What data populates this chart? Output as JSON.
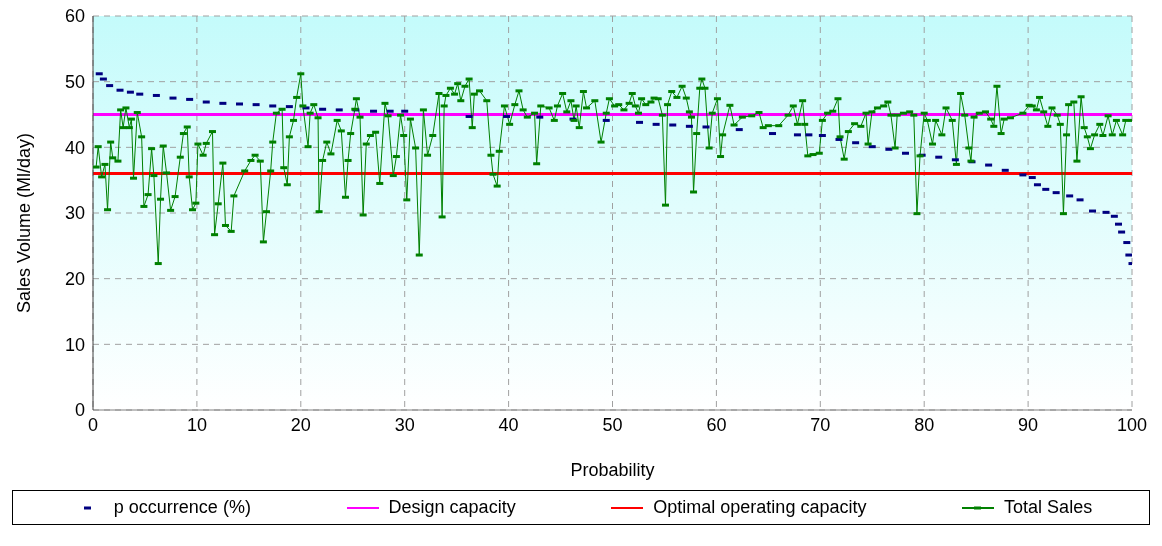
{
  "chart_data": {
    "type": "line",
    "xlabel": "Probability",
    "ylabel": "Sales Volume (Ml/day)",
    "xlim": [
      0,
      100
    ],
    "ylim": [
      0,
      60
    ],
    "xticks": [
      0,
      10,
      20,
      30,
      40,
      50,
      60,
      70,
      80,
      90,
      100
    ],
    "yticks": [
      0,
      10,
      20,
      30,
      40,
      50,
      60
    ],
    "grid": true,
    "legend": "bottom",
    "series": [
      {
        "name": "p occurrence (%)",
        "type": "scatter",
        "marker": "square",
        "color": "#000080",
        "x": [
          0.6,
          1.0,
          1.6,
          2.6,
          3.6,
          4.5,
          6.1,
          7.7,
          9.3,
          10.9,
          12.5,
          14.1,
          15.7,
          17.3,
          18.9,
          20.5,
          22.1,
          23.7,
          25.3,
          27.0,
          28.6,
          30.0,
          36.2,
          39.8,
          43.0,
          46.2,
          49.4,
          52.6,
          54.2,
          55.8,
          57.4,
          59.0,
          62.2,
          65.4,
          67.8,
          68.9,
          70.2,
          71.8,
          73.4,
          75.0,
          76.6,
          78.2,
          79.8,
          81.4,
          83.0,
          84.6,
          86.2,
          87.8,
          89.5,
          90.4,
          90.9,
          91.7,
          92.7,
          94.0,
          95.0,
          96.2,
          97.5,
          98.3,
          98.7,
          99.0,
          99.5,
          99.7,
          100.0
        ],
        "values": [
          51.2,
          50.4,
          49.4,
          48.7,
          48.4,
          48.1,
          47.9,
          47.5,
          47.3,
          46.9,
          46.7,
          46.6,
          46.5,
          46.3,
          46.2,
          46.0,
          45.8,
          45.7,
          45.7,
          45.5,
          45.5,
          45.5,
          44.7,
          44.7,
          44.6,
          44.3,
          44.1,
          43.8,
          43.5,
          43.4,
          43.2,
          43.1,
          42.7,
          42.1,
          41.9,
          41.9,
          41.8,
          41.2,
          40.7,
          40.1,
          39.7,
          39.1,
          38.8,
          38.5,
          38.1,
          37.8,
          37.3,
          36.5,
          35.8,
          35.4,
          34.3,
          33.6,
          33.1,
          32.6,
          32.0,
          30.3,
          30.1,
          29.5,
          28.3,
          27.1,
          25.5,
          23.6,
          22.3
        ]
      },
      {
        "name": "Design capacity",
        "type": "line",
        "color": "#ff00ff",
        "x": [
          0,
          100
        ],
        "values": [
          45,
          45
        ]
      },
      {
        "name": "Optimal operating capacity",
        "type": "line",
        "color": "#ff0000",
        "x": [
          0,
          100
        ],
        "values": [
          36,
          36
        ]
      },
      {
        "name": "Total Sales",
        "type": "line",
        "marker": "square",
        "color": "#008000",
        "x": [
          0.3,
          0.5,
          0.83,
          1.15,
          1.4,
          1.7,
          1.9,
          2.4,
          2.66,
          2.9,
          3.17,
          3.5,
          3.7,
          3.9,
          4.26,
          4.68,
          4.9,
          5.3,
          5.64,
          5.86,
          6.28,
          6.5,
          6.76,
          7.08,
          7.47,
          7.9,
          8.4,
          8.7,
          9.07,
          9.26,
          9.58,
          9.9,
          10.1,
          10.6,
          10.9,
          11.5,
          11.7,
          12.05,
          12.5,
          12.75,
          13.3,
          13.56,
          14.6,
          15.2,
          15.6,
          16.1,
          16.4,
          16.7,
          17.1,
          17.3,
          17.65,
          18.2,
          18.36,
          18.7,
          18.9,
          19.3,
          19.6,
          20.0,
          20.2,
          20.7,
          20.9,
          21.25,
          21.66,
          21.76,
          22.1,
          22.5,
          22.9,
          23.5,
          23.9,
          24.3,
          24.55,
          24.8,
          25.2,
          25.35,
          25.7,
          26.0,
          26.3,
          26.7,
          27.2,
          27.6,
          28.1,
          28.4,
          28.9,
          29.2,
          29.6,
          29.9,
          30.2,
          30.55,
          31.05,
          31.4,
          31.8,
          32.2,
          32.7,
          33.3,
          33.6,
          33.8,
          33.97,
          34.4,
          34.8,
          35.1,
          35.4,
          35.8,
          36.2,
          36.5,
          36.7,
          37.2,
          37.9,
          38.3,
          38.5,
          38.9,
          39.1,
          39.6,
          40.1,
          40.6,
          41.0,
          41.4,
          41.8,
          42.5,
          42.7,
          43.1,
          43.9,
          44.4,
          44.7,
          45.2,
          45.6,
          46.0,
          46.3,
          46.5,
          46.8,
          47.2,
          47.5,
          48.3,
          48.9,
          49.4,
          49.7,
          50.2,
          50.6,
          51.1,
          51.6,
          51.9,
          52.2,
          52.5,
          52.8,
          53.2,
          53.7,
          54.0,
          54.4,
          54.8,
          55.1,
          55.3,
          55.7,
          56.2,
          56.7,
          57.1,
          57.4,
          57.6,
          57.8,
          58.1,
          58.4,
          58.6,
          58.9,
          59.3,
          59.6,
          60.1,
          60.4,
          60.6,
          61.3,
          61.7,
          62.5,
          63.4,
          64.1,
          64.5,
          65.0,
          66.0,
          66.9,
          67.4,
          67.8,
          68.3,
          68.5,
          68.8,
          69.3,
          69.9,
          70.2,
          70.7,
          71.2,
          71.7,
          71.9,
          72.3,
          72.7,
          73.3,
          73.9,
          74.4,
          74.6,
          74.97,
          75.5,
          76.1,
          76.5,
          76.8,
          77.2,
          77.4,
          78.0,
          78.6,
          79.0,
          79.3,
          79.6,
          80.0,
          80.3,
          80.8,
          81.1,
          81.7,
          82.1,
          82.7,
          83.1,
          83.5,
          83.9,
          84.3,
          84.5,
          84.8,
          85.3,
          85.9,
          86.4,
          86.7,
          87.0,
          87.4,
          87.7,
          88.3,
          89.5,
          90.1,
          90.4,
          90.8,
          91.1,
          91.5,
          91.9,
          92.3,
          92.8,
          93.1,
          93.4,
          93.7,
          93.9,
          94.4,
          94.7,
          95.1,
          95.4,
          95.7,
          96.0,
          96.4,
          96.9,
          97.2,
          97.7,
          98.1,
          98.5,
          99.1,
          99.4,
          100.0
        ],
        "values": [
          37.0,
          40.1,
          35.5,
          37.4,
          30.5,
          40.8,
          38.4,
          37.9,
          45.7,
          43.0,
          46.0,
          43.0,
          44.3,
          35.3,
          45.3,
          41.6,
          31.0,
          32.8,
          39.8,
          35.7,
          22.3,
          32.1,
          40.2,
          36.1,
          30.4,
          32.5,
          38.5,
          42.1,
          43.1,
          35.5,
          30.5,
          31.5,
          40.5,
          38.8,
          40.6,
          42.4,
          26.7,
          31.4,
          37.6,
          28.1,
          27.2,
          32.6,
          36.4,
          38.0,
          38.8,
          37.9,
          25.6,
          30.2,
          36.4,
          40.8,
          45.2,
          45.8,
          36.9,
          34.3,
          41.6,
          44.1,
          47.6,
          51.2,
          46.3,
          40.1,
          45.2,
          46.5,
          44.5,
          30.2,
          38.0,
          40.8,
          39.0,
          44.1,
          42.5,
          32.4,
          38.0,
          42.1,
          45.8,
          47.4,
          44.6,
          29.7,
          40.5,
          41.8,
          42.3,
          34.5,
          46.7,
          44.8,
          35.7,
          38.6,
          44.9,
          41.8,
          32.0,
          44.3,
          39.9,
          23.6,
          45.7,
          38.8,
          41.8,
          48.2,
          29.4,
          46.3,
          47.9,
          49.0,
          48.1,
          49.7,
          47.1,
          49.3,
          50.4,
          43.0,
          48.1,
          48.6,
          47.1,
          38.8,
          35.9,
          34.1,
          39.4,
          46.3,
          43.5,
          46.5,
          48.6,
          45.7,
          44.6,
          45.2,
          37.5,
          46.3,
          46.0,
          44.1,
          46.3,
          48.2,
          45.4,
          47.1,
          44.1,
          46.3,
          43.0,
          48.5,
          46.0,
          47.1,
          40.8,
          45.2,
          47.4,
          46.3,
          46.5,
          45.7,
          46.7,
          48.2,
          46.3,
          45.2,
          47.4,
          46.5,
          46.9,
          47.5,
          47.4,
          44.9,
          31.2,
          46.5,
          48.5,
          47.6,
          49.3,
          47.5,
          45.4,
          44.6,
          33.2,
          42.1,
          49.0,
          50.4,
          49.0,
          39.9,
          45.2,
          47.4,
          38.6,
          41.9,
          46.4,
          43.4,
          44.6,
          44.8,
          45.3,
          43.0,
          43.3,
          43.3,
          44.9,
          46.3,
          43.5,
          47.1,
          43.5,
          38.7,
          38.9,
          39.1,
          44.1,
          45.2,
          45.5,
          47.4,
          41.6,
          38.2,
          42.4,
          43.6,
          43.2,
          45.2,
          40.5,
          45.4,
          46.0,
          46.3,
          46.9,
          44.9,
          39.9,
          44.9,
          45.2,
          45.4,
          44.9,
          29.9,
          38.7,
          45.2,
          44.1,
          40.5,
          44.1,
          41.9,
          46.0,
          44.1,
          37.4,
          48.2,
          44.9,
          39.9,
          37.9,
          44.6,
          45.2,
          45.4,
          44.3,
          43.2,
          49.3,
          42.1,
          44.3,
          44.5,
          45.2,
          46.4,
          46.3,
          45.7,
          47.6,
          45.4,
          43.2,
          46.0,
          44.9,
          43.5,
          29.9,
          41.9,
          46.5,
          46.9,
          37.9,
          47.7,
          43.0,
          41.6,
          39.8,
          41.9,
          43.5,
          41.8,
          44.8,
          41.9,
          44.1,
          41.9,
          44.1,
          44.1
        ]
      }
    ]
  }
}
